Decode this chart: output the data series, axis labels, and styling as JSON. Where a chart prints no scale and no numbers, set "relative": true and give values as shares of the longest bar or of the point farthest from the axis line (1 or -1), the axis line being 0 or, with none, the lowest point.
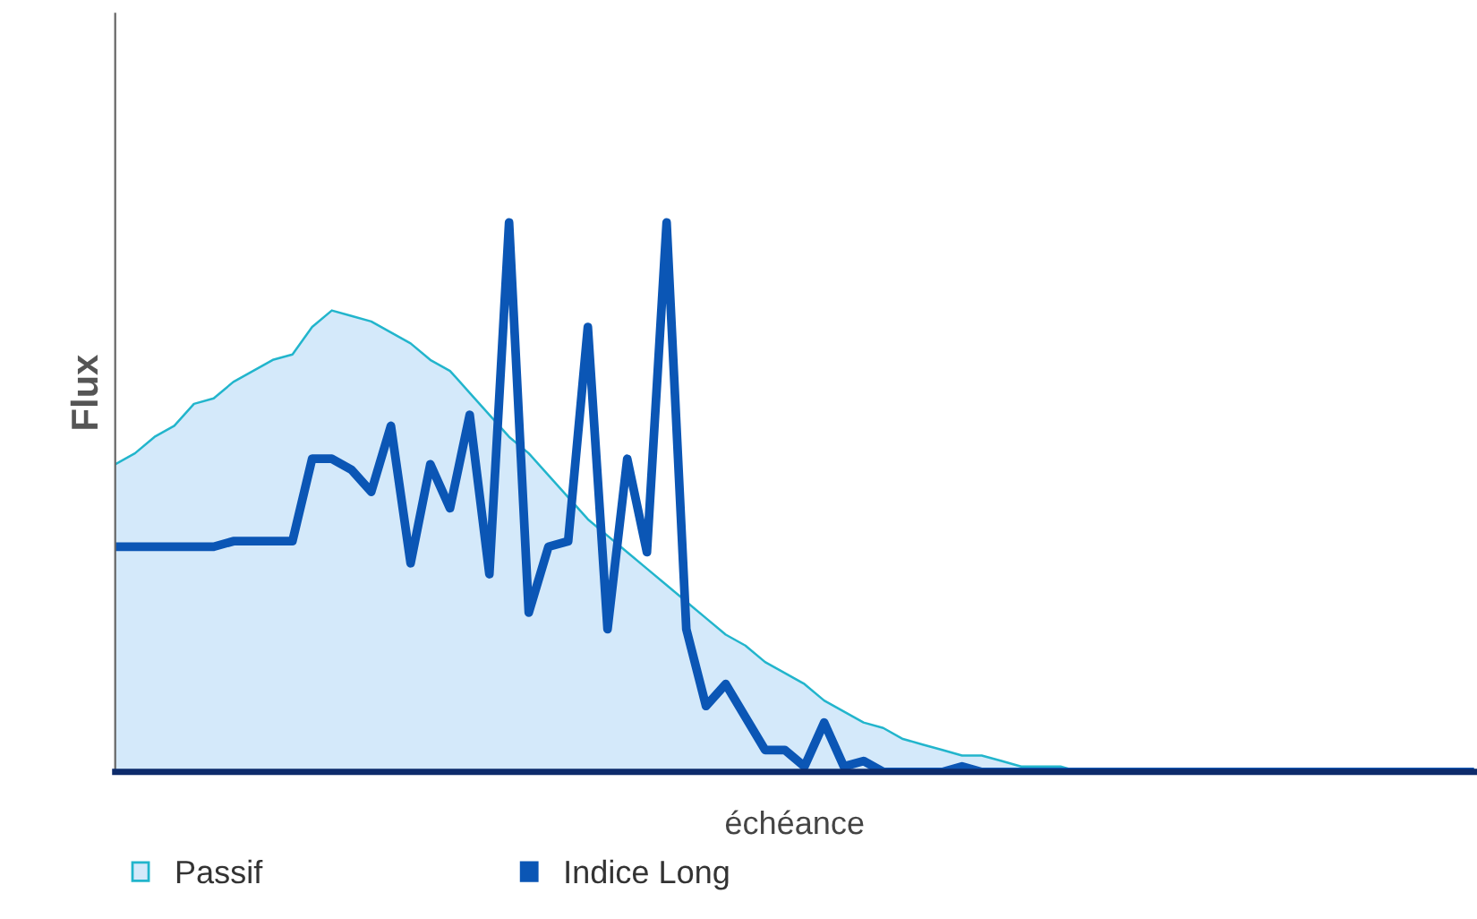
{
  "chart_data": {
    "type": "line",
    "relative": true,
    "xlabel": "échéance",
    "ylabel": "Flux",
    "legend": "bottom left",
    "grid": false,
    "categories": [
      null,
      null,
      null,
      null,
      null,
      null,
      null,
      null,
      null,
      null,
      null,
      null,
      null,
      null,
      null,
      null,
      null,
      null,
      null,
      null,
      null,
      null,
      null,
      null,
      null,
      null,
      null,
      null,
      null,
      null,
      null,
      null,
      null,
      null,
      null,
      null,
      null,
      null,
      null,
      null,
      null,
      null,
      null,
      null,
      null,
      null,
      null,
      null,
      null,
      null,
      null,
      null,
      null,
      null,
      null,
      null,
      null,
      null,
      null,
      null,
      null,
      null,
      null,
      null,
      null,
      null,
      null,
      null,
      null,
      null
    ],
    "series": [
      {
        "name": "Passif",
        "type": "area",
        "color": "#22b5cc",
        "values": [
          0.56,
          0.58,
          0.61,
          0.63,
          0.67,
          0.68,
          0.71,
          0.73,
          0.75,
          0.76,
          0.81,
          0.84,
          0.83,
          0.82,
          0.8,
          0.78,
          0.75,
          0.73,
          0.69,
          0.65,
          0.61,
          0.58,
          0.54,
          0.5,
          0.46,
          0.43,
          0.4,
          0.37,
          0.34,
          0.31,
          0.28,
          0.25,
          0.23,
          0.2,
          0.18,
          0.16,
          0.13,
          0.11,
          0.09,
          0.08,
          0.06,
          0.05,
          0.04,
          0.03,
          0.03,
          0.02,
          0.01,
          0.01,
          0.01,
          0,
          0,
          0,
          0,
          0,
          0,
          0,
          0,
          0,
          0,
          0,
          0,
          0,
          0,
          0,
          0,
          0,
          0,
          0,
          0,
          0
        ]
      },
      {
        "name": "Indice Long",
        "color": "#0b56b5",
        "values": [
          0.41,
          0.41,
          0.41,
          0.41,
          0.41,
          0.41,
          0.42,
          0.42,
          0.42,
          0.42,
          0.57,
          0.57,
          0.55,
          0.51,
          0.63,
          0.38,
          0.56,
          0.48,
          0.65,
          0.36,
          1,
          0.29,
          0.41,
          0.42,
          0.81,
          0.26,
          0.57,
          0.4,
          1,
          0.26,
          0.12,
          0.16,
          0.1,
          0.04,
          0.04,
          0.01,
          0.09,
          0.01,
          0.02,
          0,
          0,
          0,
          0,
          0.01,
          0,
          0,
          0,
          0,
          0,
          0,
          0,
          0,
          0,
          0,
          0,
          0,
          0,
          0,
          0,
          0,
          0,
          0,
          0,
          0,
          0,
          0,
          0,
          0,
          0,
          0
        ]
      }
    ]
  }
}
